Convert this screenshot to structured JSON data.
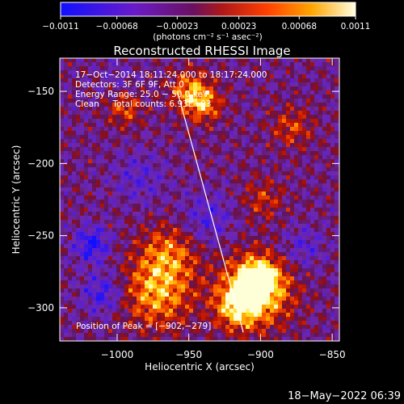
{
  "chart_data": {
    "type": "heatmap",
    "title": "Reconstructed RHESSI Image",
    "xlabel": "Heliocentric X (arcsec)",
    "ylabel": "Heliocentric Y (arcsec)",
    "xlim": [
      -1040,
      -845
    ],
    "ylim": [
      -323,
      -127
    ],
    "xticks": [
      -1000,
      -950,
      -900,
      -850
    ],
    "xtick_labels": [
      "−1000",
      "−950",
      "−900",
      "−850"
    ],
    "yticks": [
      -150,
      -200,
      -250,
      -300
    ],
    "ytick_labels": [
      "−150",
      "−200",
      "−250",
      "−300"
    ],
    "colorbar": {
      "min": -0.0011,
      "max": 0.0011,
      "ticks": [
        -0.0011,
        -0.00068,
        -0.00023,
        0.00023,
        0.00068,
        0.0011
      ],
      "tick_labels": [
        "−0.0011",
        "−0.00068",
        "−0.00023",
        "0.00023",
        "0.00068",
        "0.0011"
      ],
      "unit_label": "(photons cm⁻² s⁻¹ asec⁻²)"
    },
    "annotations": [
      "17−Oct−2014 18:11:24.000 to 18:17:24.000",
      "Detectors: 3F 6F 9F, Att 0",
      "Energy Range: 25.0 − 50.0 keV",
      "Clean     Total counts: 6.93E+03"
    ],
    "peak_label": "Position of Peak = [−902,−279]",
    "peak": [
      -902,
      -279
    ],
    "limb_line": [
      [
        -958,
        -150
      ],
      [
        -912,
        -317
      ]
    ],
    "grid": false
  },
  "footer": {
    "timestamp": "18−May−2022 06:39"
  },
  "colors": {
    "background": "#000000",
    "foreground": "#ffffff"
  }
}
